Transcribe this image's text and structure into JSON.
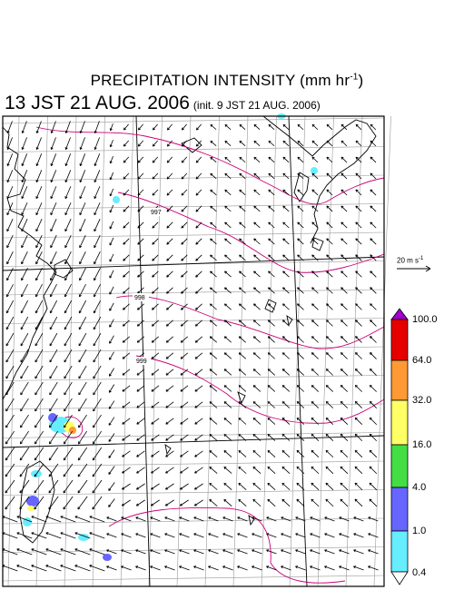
{
  "header": {
    "title": "PRECIPITATION INTENSITY (mm hr",
    "title_exponent": "-1",
    "title_close": ")",
    "valid_time": "13 JST 21 AUG. 2006",
    "init_time": "(init. 9 JST 21 AUG. 2006)"
  },
  "wind_reference": {
    "label": "20 m s",
    "label_exponent": "-1"
  },
  "isobars": {
    "color": "#cc0077",
    "labels": [
      "997",
      "998",
      "999"
    ]
  },
  "colorbar": {
    "labels": [
      "100.0",
      "64.0",
      "32.0",
      "16.0",
      "4.0",
      "1.0",
      "0.4"
    ],
    "colors": [
      "#a000c8",
      "#e60000",
      "#ff9933",
      "#ffff66",
      "#44dd44",
      "#6666ff",
      "#66eeff"
    ]
  },
  "map": {
    "background": "#ffffff",
    "coastline_color": "#000000",
    "grid_color": "#999999",
    "vector_color": "#000000"
  }
}
